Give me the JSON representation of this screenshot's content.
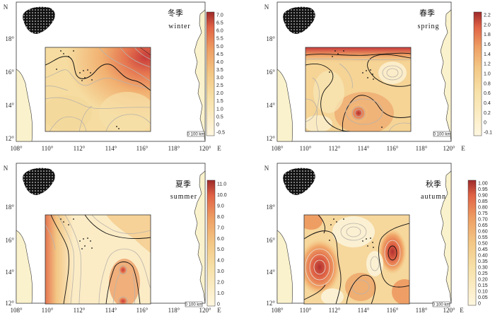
{
  "colors": {
    "land": "#faf2cc",
    "island": "#111111",
    "contour_minor": "#b9b3aa",
    "contour_major": "#111111",
    "frame": "#333333",
    "ramp": [
      "#fff7e0",
      "#f7e1a8",
      "#f3c785",
      "#ee9e63",
      "#e06245",
      "#c83a3a",
      "#9e2a2a"
    ]
  },
  "axes": {
    "x_ticks": [
      "108°",
      "110°",
      "112°",
      "114°",
      "116°",
      "118°",
      "120°"
    ],
    "x_unit": "E",
    "y_ticks": [
      "12°",
      "14°",
      "16°",
      "18°"
    ],
    "y_unit": "N",
    "scale_label": "0 100 km"
  },
  "panels": [
    {
      "id": "winter",
      "title_cn": "冬季",
      "title_en": "winter",
      "colorbar_ticks": [
        "7.0",
        "6.5",
        "6.0",
        "5.5",
        "5.0",
        "4.5",
        "4.0",
        "3.5",
        "3.0",
        "2.5",
        "2.0",
        "1.5",
        "1.0",
        "0.5",
        "0",
        "-0.5"
      ]
    },
    {
      "id": "spring",
      "title_cn": "春季",
      "title_en": "spring",
      "colorbar_ticks": [
        "2.2",
        "2.0",
        "1.8",
        "1.6",
        "1.4",
        "1.2",
        "1.0",
        "0.8",
        "0.6",
        "0.4",
        "0.2",
        "0",
        "-0.1"
      ]
    },
    {
      "id": "summer",
      "title_cn": "夏季",
      "title_en": "summer",
      "colorbar_ticks": [
        "11.0",
        "10.0",
        "9.0",
        "8.0",
        "7.0",
        "6.0",
        "5.0",
        "4.0",
        "3.0",
        "2.0",
        "1.0",
        "0"
      ]
    },
    {
      "id": "autumn",
      "title_cn": "秋季",
      "title_en": "autumn",
      "colorbar_ticks": [
        "1.00",
        "0.95",
        "0.90",
        "0.85",
        "0.80",
        "0.75",
        "0.70",
        "0.65",
        "0.60",
        "0.55",
        "0.50",
        "0.45",
        "0.40",
        "0.35",
        "0.30",
        "0.25",
        "0.20",
        "0.15",
        "0.10",
        "0.05",
        "0"
      ]
    }
  ]
}
